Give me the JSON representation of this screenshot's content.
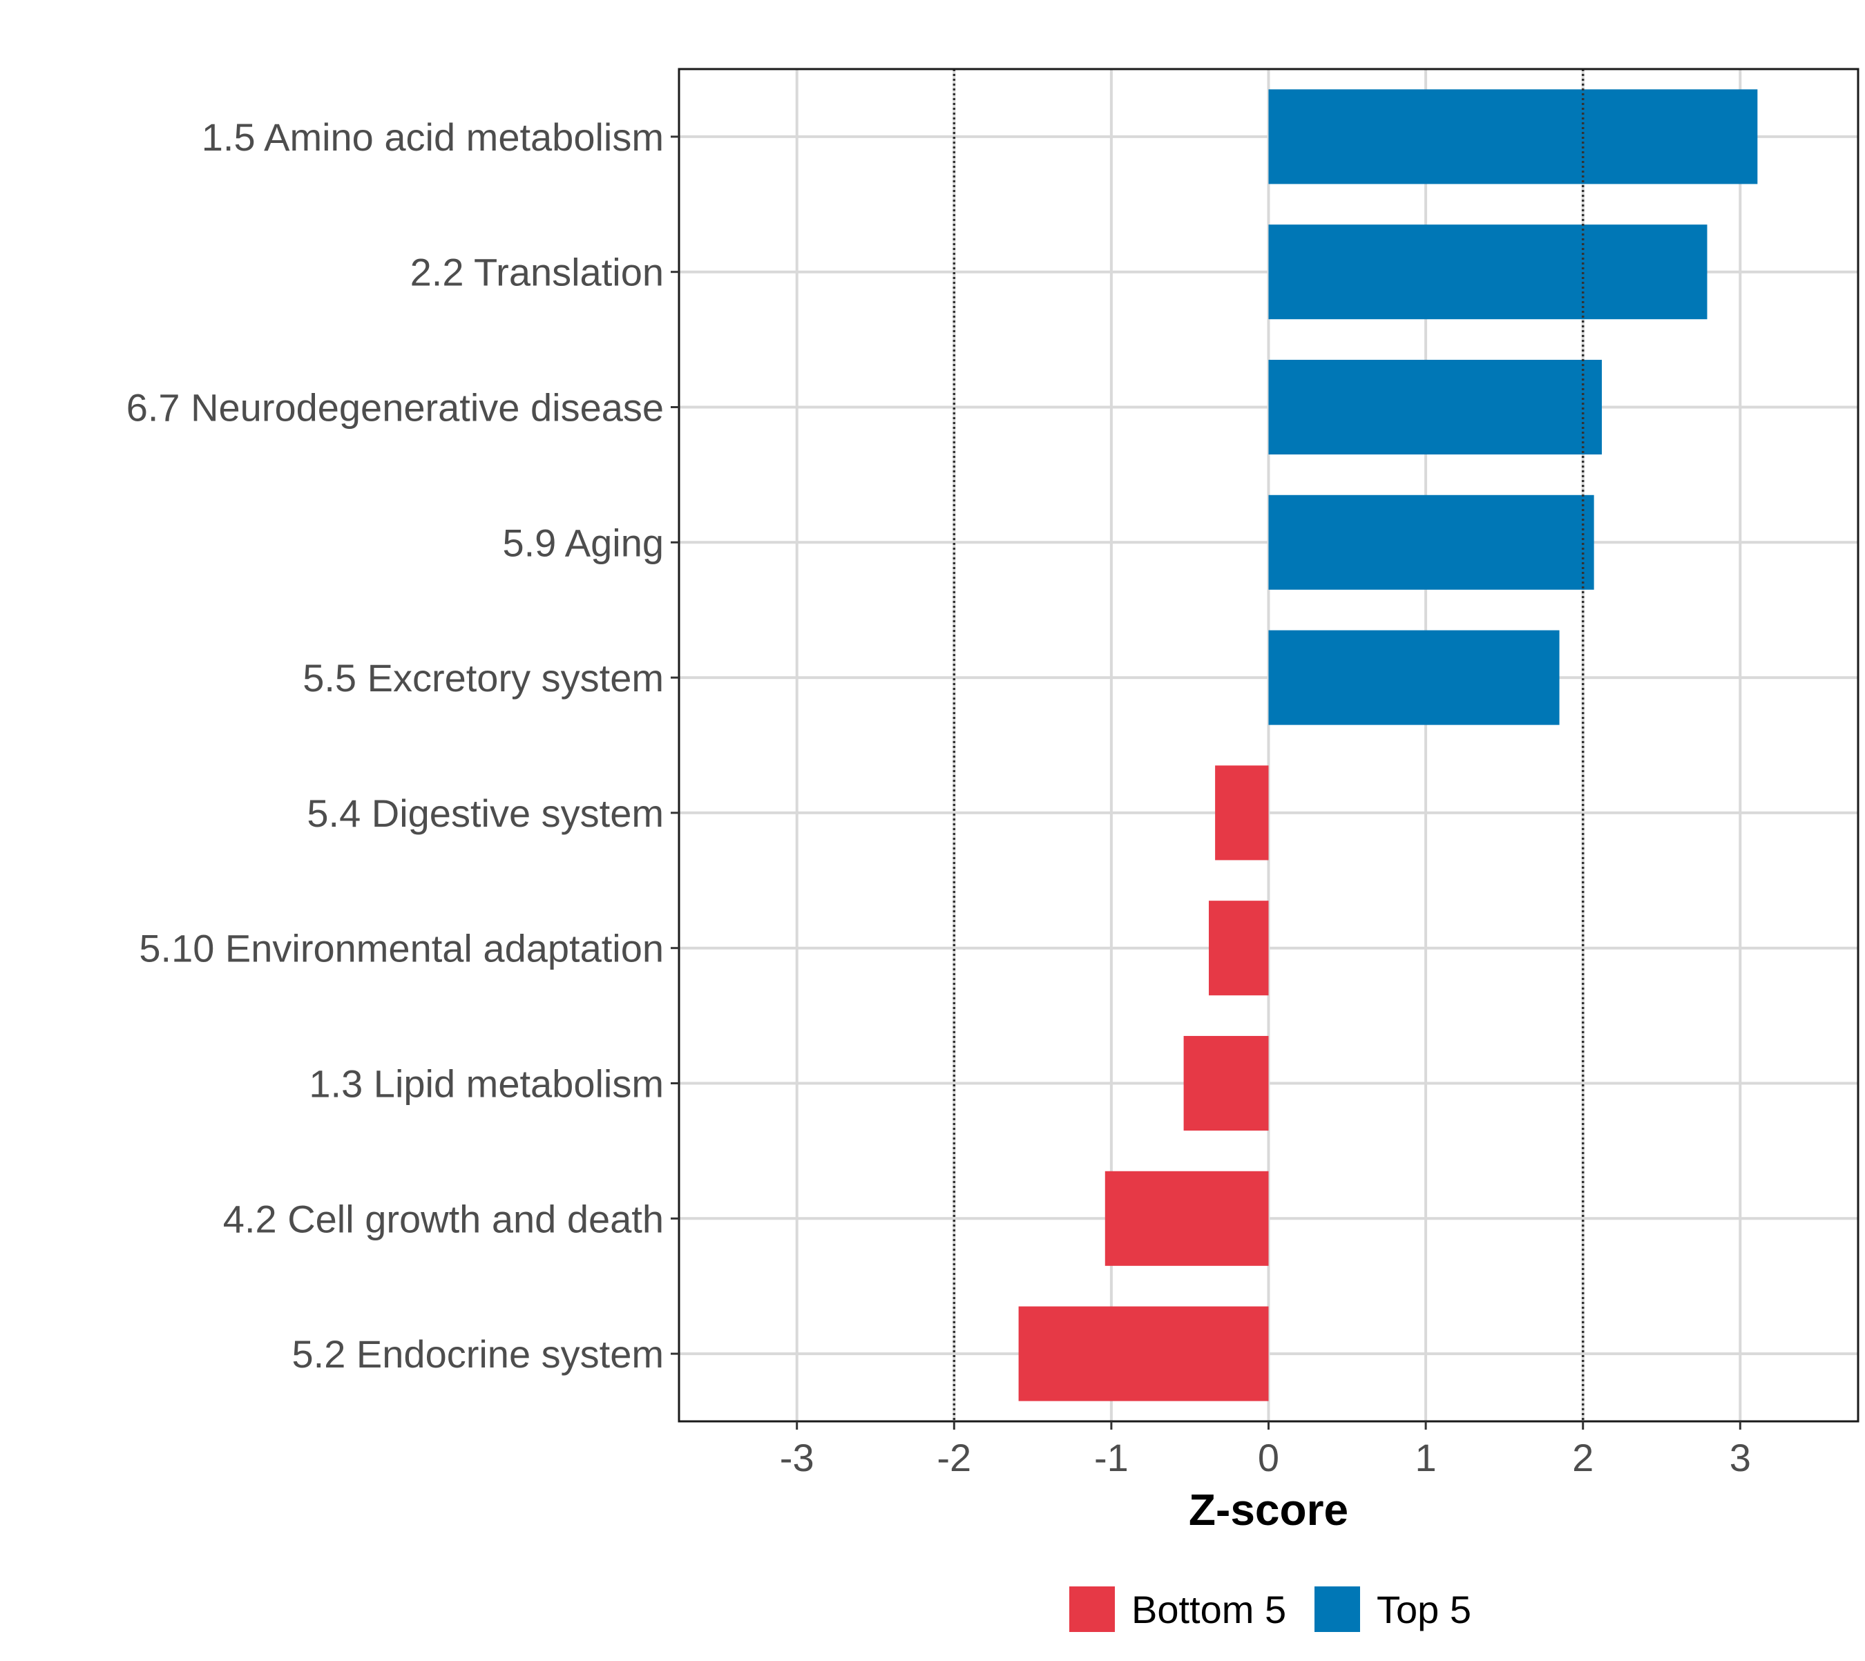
{
  "chart_data": {
    "type": "bar",
    "orientation": "horizontal",
    "title": "",
    "xlabel": "Z-score",
    "ylabel": "",
    "xlim": [
      -3.75,
      3.75
    ],
    "x_ticks": [
      -3,
      -2,
      -1,
      0,
      1,
      2,
      3
    ],
    "x_tick_labels": [
      "-3",
      "-2",
      "-1",
      "0",
      "1",
      "2",
      "3"
    ],
    "reference_lines": [
      -2,
      2
    ],
    "grid": true,
    "legend_position": "bottom",
    "categories": [
      "1.5 Amino acid metabolism",
      "2.2 Translation",
      "6.7 Neurodegenerative disease",
      "5.9 Aging",
      "5.5 Excretory system",
      "5.4 Digestive system",
      "5.10 Environmental adaptation",
      "1.3 Lipid metabolism",
      "4.2 Cell growth and death",
      "5.2 Endocrine system"
    ],
    "values": [
      3.11,
      2.79,
      2.12,
      2.07,
      1.85,
      -0.34,
      -0.38,
      -0.54,
      -1.04,
      -1.59
    ],
    "groups": [
      "Top 5",
      "Top 5",
      "Top 5",
      "Top 5",
      "Top 5",
      "Bottom 5",
      "Bottom 5",
      "Bottom 5",
      "Bottom 5",
      "Bottom 5"
    ],
    "legend": [
      {
        "name": "Bottom 5",
        "color": "#e63946"
      },
      {
        "name": "Top 5",
        "color": "#0077b6"
      }
    ]
  }
}
